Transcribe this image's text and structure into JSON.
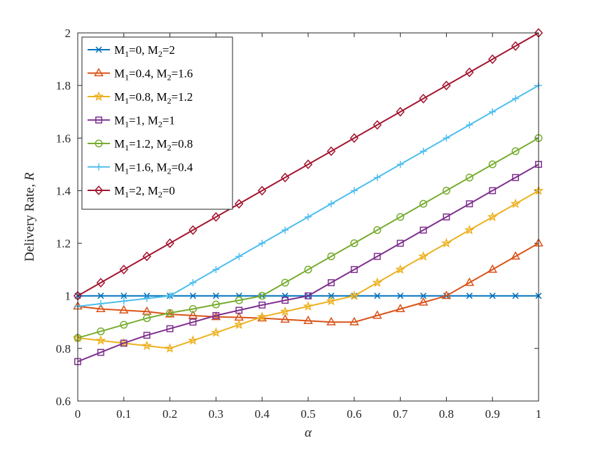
{
  "chart_data": {
    "type": "line",
    "xlabel": "α",
    "ylabel": "Delivery Rate, R",
    "xlim": [
      0,
      1
    ],
    "ylim": [
      0.6,
      2
    ],
    "x_ticks": [
      0,
      0.1,
      0.2,
      0.3,
      0.4,
      0.5,
      0.6,
      0.7,
      0.8,
      0.9,
      1
    ],
    "x_tick_labels": [
      "0",
      "0.1",
      "0.2",
      "0.3",
      "0.4",
      "0.5",
      "0.6",
      "0.7",
      "0.8",
      "0.9",
      "1"
    ],
    "y_ticks": [
      0.6,
      0.8,
      1,
      1.2,
      1.4,
      1.6,
      1.8,
      2
    ],
    "y_tick_labels": [
      "0.6",
      "0.8",
      "1",
      "1.2",
      "1.4",
      "1.6",
      "1.8",
      "2"
    ],
    "grid": false,
    "legend_position": "top-left",
    "x": [
      0,
      0.05,
      0.1,
      0.15,
      0.2,
      0.25,
      0.3,
      0.35,
      0.4,
      0.45,
      0.5,
      0.55,
      0.6,
      0.65,
      0.7,
      0.75,
      0.8,
      0.85,
      0.9,
      0.95,
      1
    ],
    "series": [
      {
        "name": "M1=0, M2=2",
        "m1": "0",
        "m2": "2",
        "color": "#0072BD",
        "marker": "x",
        "values": [
          1,
          1,
          1,
          1,
          1,
          1,
          1,
          1,
          1,
          1,
          1,
          1,
          1,
          1,
          1,
          1,
          1,
          1,
          1,
          1,
          1
        ]
      },
      {
        "name": "M1=0.4, M2=1.6",
        "m1": "0.4",
        "m2": "1.6",
        "color": "#D95319",
        "marker": "triangle",
        "values": [
          0.96,
          0.95,
          0.945,
          0.94,
          0.93,
          0.925,
          0.92,
          0.918,
          0.915,
          0.91,
          0.905,
          0.9,
          0.9,
          0.925,
          0.95,
          0.975,
          1,
          1.05,
          1.1,
          1.15,
          1.2
        ]
      },
      {
        "name": "M1=0.8, M2=1.2",
        "m1": "0.8",
        "m2": "1.2",
        "color": "#EDB120",
        "marker": "star",
        "values": [
          0.84,
          0.83,
          0.82,
          0.81,
          0.8,
          0.83,
          0.86,
          0.89,
          0.92,
          0.94,
          0.96,
          0.98,
          1,
          1.05,
          1.1,
          1.15,
          1.2,
          1.25,
          1.3,
          1.35,
          1.4
        ]
      },
      {
        "name": "M1=1, M2=1",
        "m1": "1",
        "m2": "1",
        "color": "#7E2F8E",
        "marker": "square",
        "values": [
          0.75,
          0.785,
          0.82,
          0.85,
          0.875,
          0.9,
          0.925,
          0.945,
          0.965,
          0.983,
          1,
          1.05,
          1.1,
          1.15,
          1.2,
          1.25,
          1.3,
          1.35,
          1.4,
          1.45,
          1.5
        ]
      },
      {
        "name": "M1=1.2, M2=0.8",
        "m1": "1.2",
        "m2": "0.8",
        "color": "#77AC30",
        "marker": "circle",
        "values": [
          0.84,
          0.865,
          0.89,
          0.915,
          0.935,
          0.95,
          0.967,
          0.983,
          1,
          1.05,
          1.1,
          1.15,
          1.2,
          1.25,
          1.3,
          1.35,
          1.4,
          1.45,
          1.5,
          1.55,
          1.6
        ]
      },
      {
        "name": "M1=1.6, M2=0.4",
        "m1": "1.6",
        "m2": "0.4",
        "color": "#4DBEEE",
        "marker": "plus",
        "values": [
          0.96,
          0.97,
          0.98,
          0.99,
          1,
          1.05,
          1.1,
          1.15,
          1.2,
          1.25,
          1.3,
          1.35,
          1.4,
          1.45,
          1.5,
          1.55,
          1.6,
          1.65,
          1.7,
          1.75,
          1.8
        ]
      },
      {
        "name": "M1=2, M2=0",
        "m1": "2",
        "m2": "0",
        "color": "#A2142F",
        "marker": "diamond",
        "values": [
          1,
          1.05,
          1.1,
          1.15,
          1.2,
          1.25,
          1.3,
          1.35,
          1.4,
          1.45,
          1.5,
          1.55,
          1.6,
          1.65,
          1.7,
          1.75,
          1.8,
          1.85,
          1.9,
          1.95,
          2
        ]
      }
    ]
  }
}
